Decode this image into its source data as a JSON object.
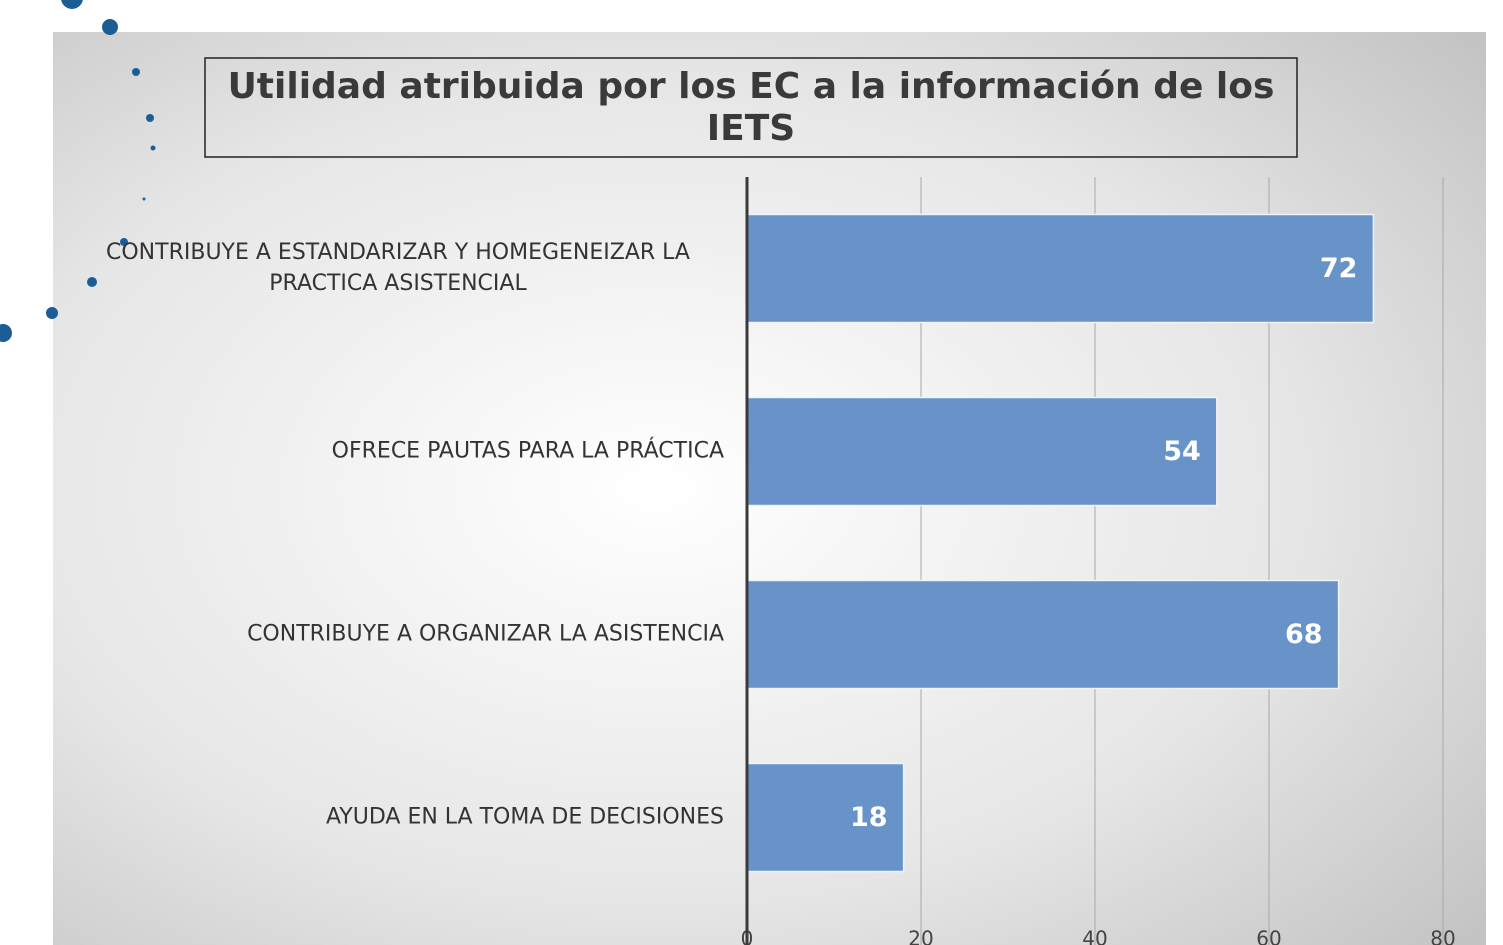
{
  "chart_data": {
    "type": "bar",
    "orientation": "horizontal",
    "title": "Utilidad atribuida por los EC a la información de los IETS",
    "categories": [
      "CONTRIBUYE A ESTANDARIZAR Y HOMEGENEIZAR LA PRACTICA ASISTENCIAL",
      "OFRECE PAUTAS PARA LA PRÁCTICA",
      "CONTRIBUYE A ORGANIZAR LA ASISTENCIA",
      "AYUDA EN LA TOMA DE DECISIONES"
    ],
    "values": [
      72,
      54,
      68,
      18
    ],
    "color": "#6793c8",
    "xlim": [
      0,
      80
    ],
    "xticks": [
      0,
      20,
      40,
      60,
      80
    ],
    "grid": true
  }
}
